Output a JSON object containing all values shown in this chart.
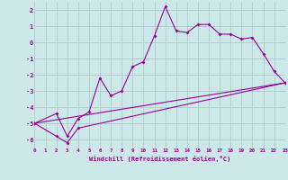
{
  "xlabel": "Windchill (Refroidissement éolien,°C)",
  "bg_color": "#cce8e8",
  "grid_color": "#b0c8c8",
  "line_color": "#990099",
  "xlim": [
    0,
    23
  ],
  "ylim": [
    -6.5,
    2.5
  ],
  "xticks": [
    0,
    1,
    2,
    3,
    4,
    5,
    6,
    7,
    8,
    9,
    10,
    11,
    12,
    13,
    14,
    15,
    16,
    17,
    18,
    19,
    20,
    21,
    22,
    23
  ],
  "yticks": [
    -6,
    -5,
    -4,
    -3,
    -2,
    -1,
    0,
    1,
    2
  ],
  "line1_x": [
    0,
    2,
    3,
    4,
    5,
    6,
    7,
    8,
    9,
    10,
    11,
    12,
    13,
    14,
    15,
    16,
    17,
    18,
    19,
    20,
    21,
    22,
    23
  ],
  "line1_y": [
    -5.0,
    -4.4,
    -5.8,
    -4.7,
    -4.3,
    -2.2,
    -3.3,
    -3.0,
    -1.5,
    -1.2,
    0.4,
    2.2,
    0.7,
    0.6,
    1.1,
    1.1,
    0.5,
    0.5,
    0.2,
    0.3,
    -0.7,
    -1.8,
    -2.5
  ],
  "line2_x": [
    0,
    2,
    3,
    4,
    23
  ],
  "line2_y": [
    -5.0,
    -5.8,
    -6.2,
    -5.3,
    -2.5
  ],
  "line3_x": [
    0,
    23
  ],
  "line3_y": [
    -5.0,
    -2.5
  ]
}
